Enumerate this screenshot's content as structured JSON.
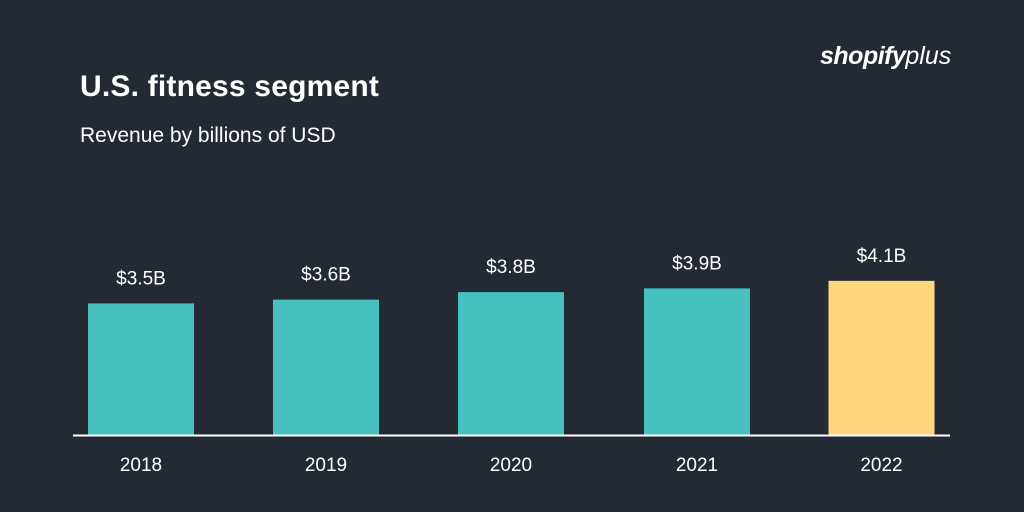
{
  "logo": {
    "part1": "shopify",
    "part2": "plus"
  },
  "chart_data": {
    "type": "bar",
    "title": "U.S. fitness segment",
    "subtitle": "Revenue by billions of USD",
    "categories": [
      "2018",
      "2019",
      "2020",
      "2021",
      "2022"
    ],
    "values": [
      3.5,
      3.6,
      3.8,
      3.9,
      4.1
    ],
    "data_labels": [
      "$3.5B",
      "$3.6B",
      "$3.8B",
      "$3.9B",
      "$4.1B"
    ],
    "xlabel": "",
    "ylabel": "",
    "ylim": [
      0,
      4.1
    ],
    "grid": false,
    "colors": {
      "default": "#47c1bf",
      "highlight": "#ffd57f",
      "background": "#232a33",
      "axis": "#ffffff"
    },
    "highlight_index": 4
  }
}
